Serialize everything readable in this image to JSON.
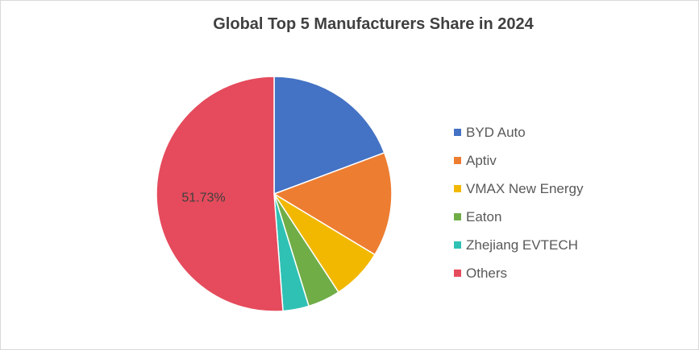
{
  "chart_data": {
    "type": "pie",
    "title": "Global Top 5 Manufacturers Share in 2024",
    "categories": [
      "BYD Auto",
      "Aptiv",
      "VMAX New Energy",
      "Eaton",
      "Zhejiang EVTECH",
      "Others"
    ],
    "values": [
      19.5,
      14.5,
      7.2,
      4.5,
      3.6,
      51.73
    ],
    "colors": [
      "#4472c4",
      "#ed7d31",
      "#f2b800",
      "#70ad47",
      "#2fc1b4",
      "#e54b5c"
    ],
    "data_labels": [
      {
        "category": "Others",
        "text": "51.73%"
      }
    ],
    "legend_position": "right",
    "start_angle_deg": 0,
    "direction": "clockwise"
  }
}
